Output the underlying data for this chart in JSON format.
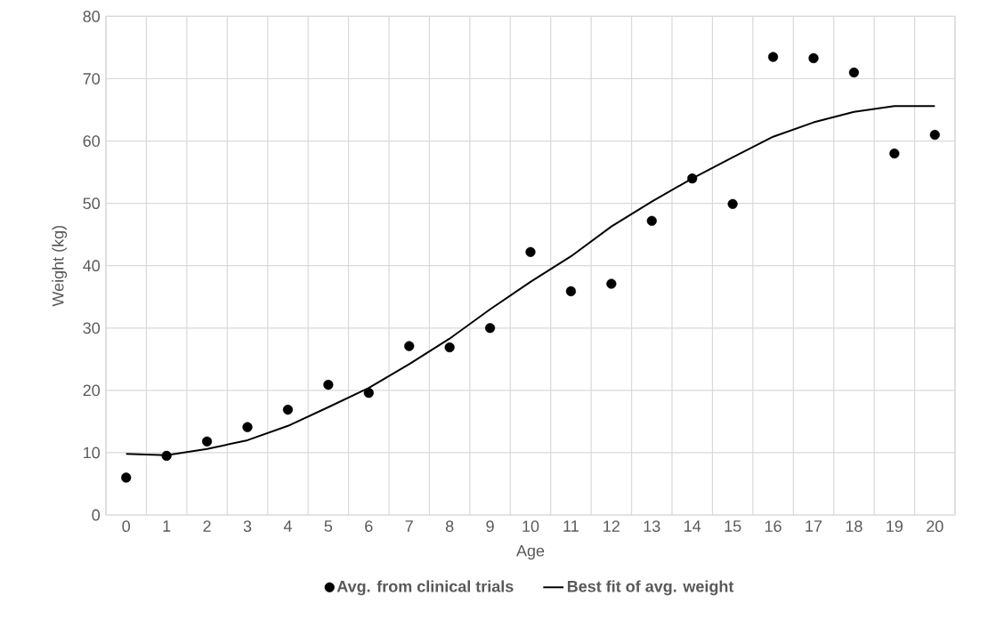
{
  "chart_data": {
    "type": "scatter",
    "xlabel": "Age",
    "ylabel": "Weight (kg)",
    "categories": [
      "0",
      "1",
      "2",
      "3",
      "4",
      "5",
      "6",
      "7",
      "8",
      "9",
      "10",
      "11",
      "12",
      "13",
      "14",
      "15",
      "16",
      "17",
      "18",
      "19",
      "20"
    ],
    "series": [
      {
        "name": "Avg. from clinical trials",
        "marker": "circle",
        "color": "#000000",
        "values": [
          6,
          9.5,
          11.8,
          14.1,
          16.9,
          20.9,
          19.6,
          27.1,
          26.9,
          30.0,
          42.2,
          35.9,
          37.1,
          47.2,
          54.0,
          49.9,
          73.5,
          73.3,
          71.0,
          58.0,
          61.0
        ]
      },
      {
        "name": "Best fit of avg. weight",
        "type": "line",
        "marker": "none",
        "line_style": "solid",
        "color": "#000000",
        "values": [
          9.8,
          9.6,
          10.6,
          12.0,
          14.3,
          17.3,
          20.4,
          24.2,
          28.3,
          33.0,
          37.4,
          41.5,
          46.3,
          50.3,
          54.0,
          57.4,
          60.7,
          63.0,
          64.7,
          65.6,
          65.6
        ]
      }
    ],
    "ylim": [
      0,
      80
    ],
    "yticks": [
      0,
      10,
      20,
      30,
      40,
      50,
      60,
      70,
      80
    ],
    "grid": true,
    "legend": "bottom"
  }
}
